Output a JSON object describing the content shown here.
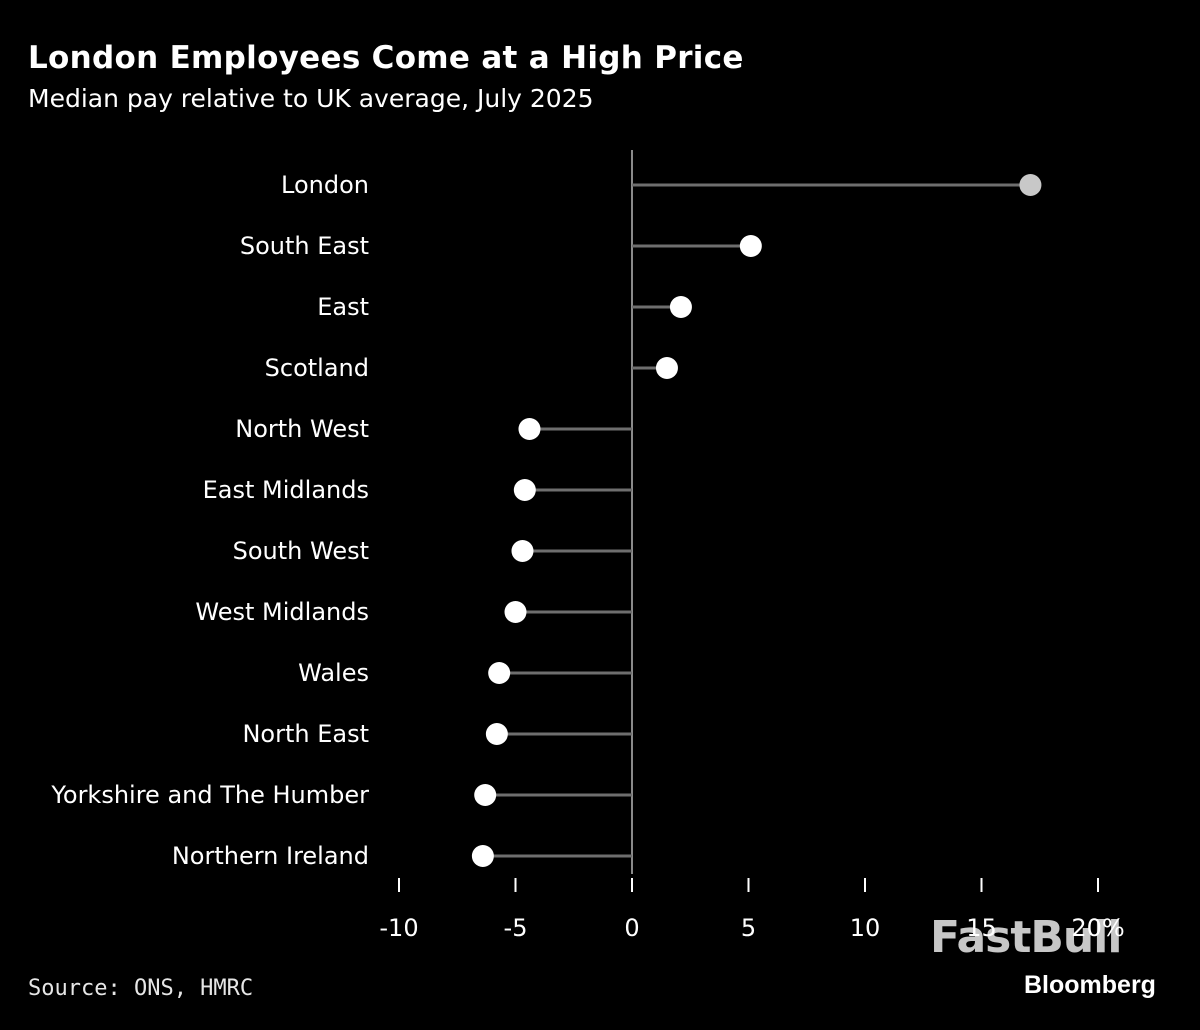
{
  "title": "London Employees Come at a High Price",
  "subtitle": "Median pay relative to UK average, July 2025",
  "source": "Source: ONS, HMRC",
  "watermark": "FastBull",
  "brand": "Bloomberg",
  "chart_data": {
    "type": "dot",
    "categories": [
      "London",
      "South East",
      "East",
      "Scotland",
      "North West",
      "East Midlands",
      "South West",
      "West Midlands",
      "Wales",
      "North East",
      "Yorkshire and The Humber",
      "Northern Ireland"
    ],
    "values": [
      17.1,
      5.1,
      2.1,
      1.5,
      -4.4,
      -4.6,
      -4.7,
      -5.0,
      -5.7,
      -5.8,
      -6.3,
      -6.4
    ],
    "highlight_index": 0,
    "x_ticks": [
      "-10",
      "-5",
      "0",
      "5",
      "10",
      "15",
      "20%"
    ],
    "x_tick_values": [
      -10,
      -5,
      0,
      5,
      10,
      15,
      20
    ],
    "xlim": [
      -10,
      20
    ],
    "colors": {
      "dot": "#ffffff",
      "highlight_dot": "#c8c8c8",
      "stem": "#6e6e6e",
      "axis": "#8a8a8a",
      "text": "#ffffff"
    }
  }
}
